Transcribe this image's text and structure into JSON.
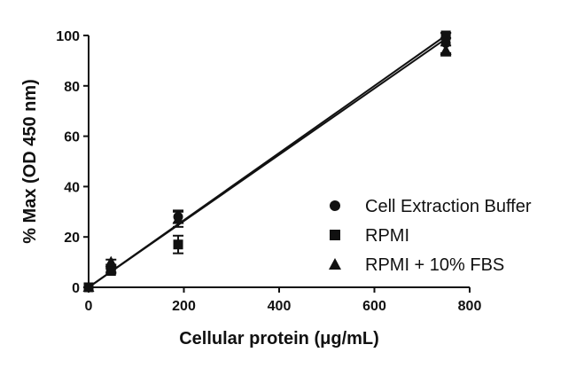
{
  "chart_data": {
    "type": "scatter",
    "title": "",
    "xlabel": "Cellular protein (μg/mL)",
    "ylabel": "% Max (OD 450 nm)",
    "xlim": [
      0,
      800
    ],
    "ylim": [
      0,
      100
    ],
    "x_ticks": [
      "0",
      "200",
      "400",
      "600",
      "800"
    ],
    "y_ticks": [
      "0",
      "20",
      "40",
      "60",
      "80",
      "100"
    ],
    "grid": false,
    "legend_position": "bottom-right",
    "series": [
      {
        "name": "Cell Extraction Buffer",
        "marker": "circle",
        "x": [
          0,
          47,
          188,
          750
        ],
        "y": [
          0,
          7,
          28,
          97
        ],
        "error": [
          0,
          1,
          2.5,
          4
        ],
        "fit": [
          0,
          98.7
        ]
      },
      {
        "name": "RPMI",
        "marker": "square",
        "x": [
          0,
          47,
          188,
          750
        ],
        "y": [
          0,
          6.5,
          17,
          100
        ],
        "error": [
          0,
          1,
          3.5,
          1
        ],
        "fit": [
          0,
          100
        ]
      },
      {
        "name": "RPMI + 10% FBS",
        "marker": "triangle",
        "x": [
          0,
          47,
          188,
          750
        ],
        "y": [
          0,
          10,
          27,
          94
        ],
        "error": [
          0,
          1,
          3,
          2
        ],
        "fit": null
      }
    ]
  }
}
